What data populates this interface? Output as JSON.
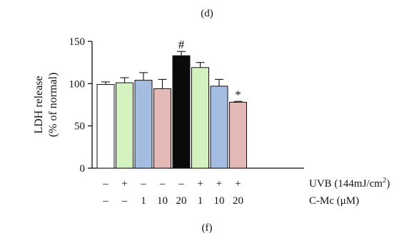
{
  "panel_labels": {
    "top": "(d)",
    "bottom": "(f)"
  },
  "chart_data": {
    "type": "bar",
    "ylabel_line1": "LDH release",
    "ylabel_line2": "(% of normal)",
    "ylim": [
      0,
      150
    ],
    "yticks": [
      0,
      50,
      100,
      150
    ],
    "ytick_labels": [
      "0",
      "50",
      "100",
      "150"
    ],
    "bars": [
      {
        "value": 99,
        "error": 3,
        "color": "#ffffff",
        "uvb": "–",
        "cmc": "–",
        "annotation": ""
      },
      {
        "value": 101,
        "error": 6,
        "color": "#d4f2c0",
        "uvb": "+",
        "cmc": "–",
        "annotation": ""
      },
      {
        "value": 104,
        "error": 9,
        "color": "#a5bde0",
        "uvb": "–",
        "cmc": "1",
        "annotation": ""
      },
      {
        "value": 94,
        "error": 11,
        "color": "#e3b9b7",
        "uvb": "–",
        "cmc": "10",
        "annotation": ""
      },
      {
        "value": 133,
        "error": 5,
        "color": "#0a0a0a",
        "uvb": "–",
        "cmc": "20",
        "annotation": "#"
      },
      {
        "value": 119,
        "error": 6,
        "color": "#d4f2c0",
        "uvb": "+",
        "cmc": "1",
        "annotation": ""
      },
      {
        "value": 97,
        "error": 8,
        "color": "#a5bde0",
        "uvb": "+",
        "cmc": "10",
        "annotation": ""
      },
      {
        "value": 78,
        "error": 1,
        "color": "#e3b9b7",
        "uvb": "+",
        "cmc": "20",
        "annotation": "*"
      }
    ],
    "row_labels": {
      "uvb_prefix": "UVB (144mJ/cm",
      "uvb_sup": "2",
      "uvb_suffix": ")",
      "cmc": "C-Mc (μM)"
    }
  }
}
